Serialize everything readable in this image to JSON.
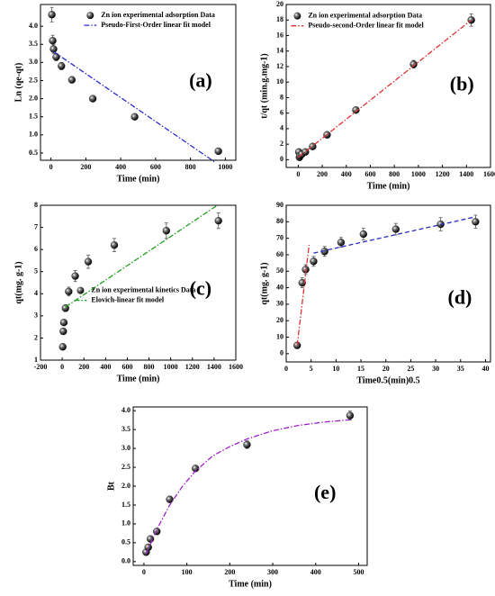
{
  "chart_data": [
    {
      "type": "scatter",
      "label": "(a)",
      "xlabel": "Time (min)",
      "ylabel": "Ln (qe-qt)",
      "xlim": [
        -60,
        1060
      ],
      "ylim": [
        0.3,
        4.6
      ],
      "xticks": [
        0,
        200,
        400,
        600,
        800,
        1000
      ],
      "yticks": [
        0.5,
        {
          "value": 1,
          "label": "1.0"
        },
        1.5,
        {
          "value": 2,
          "label": "2.0"
        },
        2.5,
        {
          "value": 3,
          "label": "3.0"
        },
        3.5,
        {
          "value": 4,
          "label": "4.0"
        }
      ],
      "series": [
        {
          "name": "Zn ion experimental adsorption Data",
          "mode": "markers",
          "color": "#000000",
          "x": [
            5,
            10,
            15,
            30,
            60,
            120,
            240,
            480,
            960
          ],
          "values": [
            4.32,
            3.6,
            3.37,
            3.15,
            2.9,
            2.52,
            2.0,
            1.5,
            0.55
          ],
          "errors": [
            0.2,
            0.15,
            0.12,
            0.1,
            0.1,
            0.08,
            0.06,
            0.06,
            0.05
          ]
        },
        {
          "name": "Pseudo-First-Order linear fit model",
          "mode": "line",
          "dash": "dashdot",
          "color": "#2b2bc8",
          "x": [
            15,
            940
          ],
          "values": [
            3.3,
            0.25
          ]
        }
      ]
    },
    {
      "type": "scatter",
      "label": "(b)",
      "xlabel": "Time (min)",
      "ylabel": "t/qt (min.g.mg-1)",
      "xlim": [
        -100,
        1600
      ],
      "ylim": [
        -1,
        20
      ],
      "xticks": [
        0,
        200,
        400,
        600,
        800,
        1000,
        1200,
        1400,
        1600
      ],
      "yticks": [
        0,
        2,
        4,
        6,
        8,
        10,
        12,
        14,
        16,
        18,
        20
      ],
      "series": [
        {
          "name": "Zn ion experimental adsorption Data",
          "mode": "markers",
          "color": "#000000",
          "x": [
            5,
            10,
            15,
            30,
            60,
            120,
            240,
            480,
            960,
            1440
          ],
          "values": [
            1.0,
            0.3,
            0.5,
            0.7,
            1.0,
            1.7,
            3.2,
            6.4,
            12.3,
            18.0
          ],
          "errors": [
            0.2,
            0.1,
            0.1,
            0.1,
            0.1,
            0.15,
            0.2,
            0.3,
            0.5,
            0.8
          ]
        },
        {
          "name": "Pseudo-second-Order linear fit model",
          "mode": "line",
          "dash": "dashdot",
          "color": "#e03030",
          "x": [
            0,
            1440
          ],
          "values": [
            0.3,
            18.0
          ]
        }
      ]
    },
    {
      "type": "scatter",
      "label": "(c)",
      "xlabel": "Time (min)",
      "ylabel": "qt(mg. g-1)",
      "xlim": [
        -200,
        1600
      ],
      "ylim": [
        1,
        8
      ],
      "xticks": [
        -200,
        0,
        200,
        400,
        600,
        800,
        1000,
        1200,
        1400,
        1600
      ],
      "yticks": [
        1,
        2,
        3,
        4,
        5,
        6,
        7,
        8
      ],
      "series": [
        {
          "name": "Zn ion experimental kinetics Data",
          "mode": "markers",
          "color": "#000000",
          "x": [
            5,
            10,
            15,
            30,
            60,
            120,
            240,
            480,
            960,
            1440
          ],
          "values": [
            1.6,
            2.3,
            2.7,
            3.35,
            4.1,
            4.8,
            5.45,
            6.2,
            6.85,
            7.3
          ],
          "errors": [
            0.05,
            0.1,
            0.1,
            0.15,
            0.2,
            0.25,
            0.3,
            0.3,
            0.35,
            0.35
          ]
        },
        {
          "name": "Elovich-linear fit model",
          "mode": "line",
          "dash": "dashdot",
          "color": "#20a020",
          "x": [
            30,
            1430
          ],
          "values": [
            3.4,
            8.0
          ]
        }
      ]
    },
    {
      "type": "scatter",
      "label": "(d)",
      "xlabel": "Time0.5(min)0.5",
      "ylabel": "qt(mg. g-1)",
      "xlim": [
        0,
        41
      ],
      "ylim": [
        -5,
        90
      ],
      "xticks": [
        0,
        5,
        10,
        15,
        20,
        25,
        30,
        35,
        40
      ],
      "yticks": [
        0,
        10,
        20,
        30,
        40,
        50,
        60,
        70,
        80,
        90
      ],
      "series": [
        {
          "mode": "markers",
          "color": "#000000",
          "x": [
            2.2,
            3.2,
            3.9,
            5.5,
            7.7,
            11,
            15.5,
            22,
            31,
            38
          ],
          "values": [
            5,
            43,
            51,
            56,
            62,
            67.5,
            72.5,
            75.5,
            78.5,
            80
          ],
          "errors": [
            1,
            3,
            3,
            3,
            3,
            3,
            3.5,
            3.5,
            4,
            4
          ]
        },
        {
          "mode": "line",
          "dash": "dashdot",
          "color": "#e03030",
          "x": [
            2.2,
            4.6
          ],
          "values": [
            5,
            66
          ]
        },
        {
          "mode": "line",
          "dash": "dashed",
          "color": "#2b2bc8",
          "x": [
            5.5,
            38
          ],
          "values": [
            61,
            83
          ]
        }
      ]
    },
    {
      "type": "scatter",
      "label": "(e)",
      "xlabel": "Time (min)",
      "ylabel": "Bt",
      "xlim": [
        -25,
        520
      ],
      "ylim": [
        -0.1,
        4.1
      ],
      "xticks": [
        0,
        100,
        200,
        300,
        400,
        500
      ],
      "yticks": [
        {
          "value": 0,
          "label": "0.0"
        },
        0.5,
        {
          "value": 1,
          "label": "1.0"
        },
        1.5,
        {
          "value": 2,
          "label": "2.0"
        },
        2.5,
        {
          "value": 3,
          "label": "3.0"
        },
        3.5,
        {
          "value": 4,
          "label": "4.0"
        }
      ],
      "series": [
        {
          "mode": "markers",
          "color": "#000000",
          "x": [
            5,
            10,
            15,
            30,
            60,
            120,
            240,
            480
          ],
          "values": [
            0.25,
            0.38,
            0.6,
            0.8,
            1.65,
            2.47,
            3.1,
            3.87
          ],
          "errors": [
            0.03,
            0.03,
            0.04,
            0.05,
            0.05,
            0.06,
            0.1,
            0.12
          ]
        },
        {
          "mode": "line",
          "dash": "dashdot",
          "color": "#a020c8",
          "x": [
            5,
            30,
            60,
            90,
            120,
            160,
            200,
            240,
            300,
            360,
            420,
            480
          ],
          "values": [
            0.2,
            0.85,
            1.5,
            2.0,
            2.4,
            2.8,
            3.05,
            3.25,
            3.47,
            3.61,
            3.7,
            3.76
          ]
        }
      ]
    }
  ]
}
